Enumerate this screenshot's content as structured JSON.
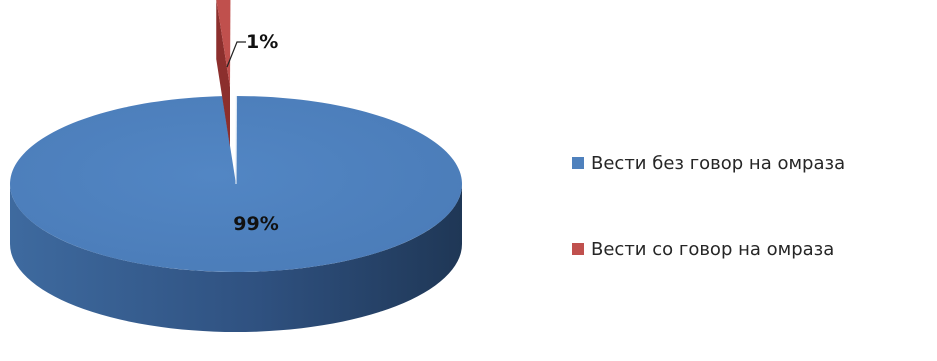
{
  "chart_data": {
    "type": "pie",
    "style": "3d",
    "categories": [
      "Вести без говор на омраза",
      "Вести со говор на омраза"
    ],
    "values": [
      99,
      1
    ],
    "data_labels": [
      "99%",
      "1%"
    ],
    "colors": [
      "#4f81bd",
      "#c0504d"
    ],
    "legend_position": "right",
    "exploded_slice": "Вести со говор на омраза"
  }
}
